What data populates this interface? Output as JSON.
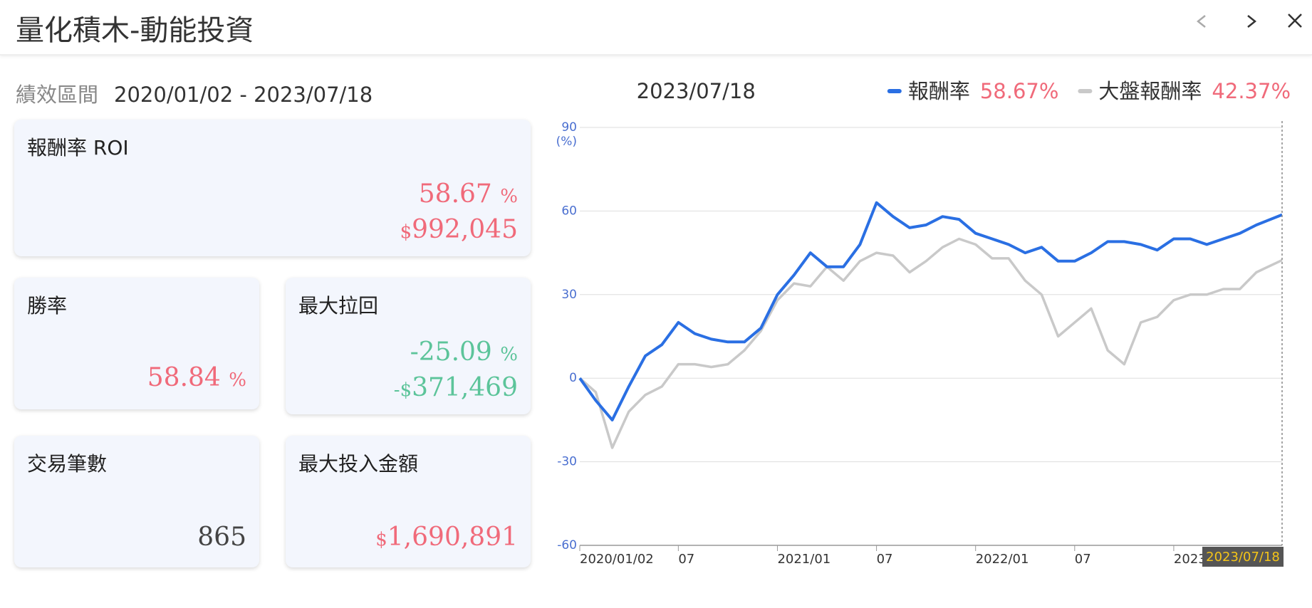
{
  "header": {
    "title": "量化積木-動能投資"
  },
  "period": {
    "label": "績效區間",
    "range": "2020/01/02 - 2023/07/18"
  },
  "cards": {
    "roi": {
      "title": "報酬率 ROI",
      "value": "58.67",
      "unit": "%",
      "currency": "$",
      "amount": "992,045"
    },
    "win_rate": {
      "title": "勝率",
      "value": "58.84",
      "unit": "%"
    },
    "max_drawdown": {
      "title": "最大拉回",
      "value": "-25.09",
      "unit": "%",
      "currency": "-$",
      "amount": "371,469"
    },
    "trades": {
      "title": "交易筆數",
      "value": "865"
    },
    "max_invest": {
      "title": "最大投入金額",
      "currency": "$",
      "amount": "1,690,891"
    }
  },
  "chart_data": {
    "type": "line",
    "cursor_date": "2023/07/18",
    "y_unit": "(%)",
    "x": [
      "2020/01/02",
      "2020/02",
      "2020/03",
      "2020/04",
      "2020/05",
      "2020/06",
      "2020/07",
      "2020/08",
      "2020/09",
      "2020/10",
      "2020/11",
      "2020/12",
      "2021/01",
      "2021/02",
      "2021/03",
      "2021/04",
      "2021/05",
      "2021/06",
      "2021/07",
      "2021/08",
      "2021/09",
      "2021/10",
      "2021/11",
      "2021/12",
      "2022/01",
      "2022/02",
      "2022/03",
      "2022/04",
      "2022/05",
      "2022/06",
      "2022/07",
      "2022/08",
      "2022/09",
      "2022/10",
      "2022/11",
      "2022/12",
      "2023/01",
      "2023/02",
      "2023/03",
      "2023/04",
      "2023/05",
      "2023/06",
      "2023/07/18"
    ],
    "xlim": [
      "2020/01/02",
      "2023/07/18"
    ],
    "xticks": [
      {
        "value": "2020/01/02",
        "label": "2020/01/02"
      },
      {
        "value": "2020/07",
        "label": "07"
      },
      "2021/01",
      {
        "value": "2021/07",
        "label": "07"
      },
      "2022/01",
      {
        "value": "2022/07",
        "label": "07"
      },
      "2023/01"
    ],
    "ylim": [
      -60,
      90
    ],
    "yticks": [
      -60,
      -30,
      0,
      30,
      60,
      90
    ],
    "grid": true,
    "series": [
      {
        "name": "報酬率",
        "color": "#2a6fe3",
        "latest": "58.67%",
        "values": [
          0,
          -8,
          -15,
          -3,
          8,
          12,
          20,
          16,
          14,
          13,
          13,
          18,
          30,
          37,
          45,
          40,
          40,
          48,
          63,
          58,
          54,
          55,
          58,
          57,
          52,
          50,
          48,
          45,
          47,
          42,
          42,
          45,
          49,
          49,
          48,
          46,
          50,
          50,
          48,
          50,
          52,
          55,
          58.67
        ]
      },
      {
        "name": "大盤報酬率",
        "color": "#c9c9c9",
        "latest": "42.37%",
        "values": [
          0,
          -5,
          -25,
          -12,
          -6,
          -3,
          5,
          5,
          4,
          5,
          10,
          17,
          28,
          34,
          33,
          40,
          35,
          42,
          45,
          44,
          38,
          42,
          47,
          50,
          48,
          43,
          43,
          35,
          30,
          15,
          20,
          25,
          10,
          5,
          20,
          22,
          28,
          30,
          30,
          32,
          32,
          38,
          42.37
        ]
      }
    ]
  }
}
